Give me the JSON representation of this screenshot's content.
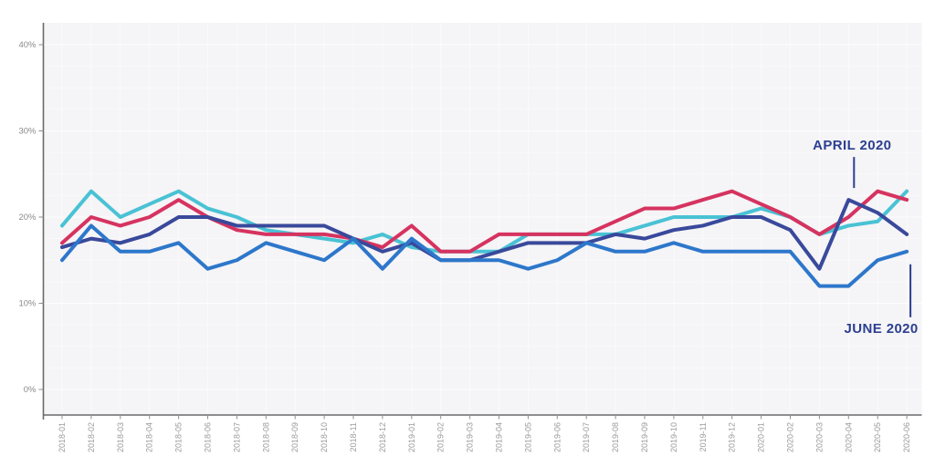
{
  "colors": {
    "page_background": "#ffffff",
    "plot_background": "#f5f4f6",
    "axis_line": "#6a6a6a",
    "tick_mark": "#8f8f8f",
    "x_label": "#9a9a9a",
    "y_label": "#8a8a8a",
    "gridline": "#ffffff",
    "annotation_text": "#2c3f90"
  },
  "chart_data": {
    "type": "line",
    "title": "",
    "xlabel": "",
    "ylabel": "",
    "legend": "none",
    "grid": "subtle",
    "x": [
      "2018-01",
      "2018-02",
      "2018-03",
      "2018-04",
      "2018-05",
      "2018-06",
      "2018-07",
      "2018-08",
      "2018-09",
      "2018-10",
      "2018-11",
      "2018-12",
      "2019-01",
      "2019-02",
      "2019-03",
      "2019-04",
      "2019-05",
      "2019-06",
      "2019-07",
      "2019-08",
      "2019-09",
      "2019-10",
      "2019-11",
      "2019-12",
      "2020-01",
      "2020-02",
      "2020-03",
      "2020-04",
      "2020-05",
      "2020-06"
    ],
    "y_axis": {
      "tick_labels": [
        "0%",
        "10%",
        "20%",
        "30%",
        "40%"
      ],
      "tick_values": [
        0,
        10,
        20,
        30,
        40
      ],
      "unit": "%"
    },
    "series": [
      {
        "id": "teal",
        "color": "#49c2d4",
        "values": [
          19,
          23,
          20,
          21.5,
          23,
          21,
          20,
          18.5,
          18,
          17.5,
          17,
          18,
          16.5,
          16,
          16,
          16,
          18,
          18,
          18,
          18,
          19,
          20,
          20,
          20,
          21,
          20,
          18,
          19,
          19.5,
          23
        ]
      },
      {
        "id": "crimson",
        "color": "#d63360",
        "values": [
          17,
          20,
          19,
          20,
          22,
          20,
          18.5,
          18,
          18,
          18,
          17.5,
          16.5,
          19,
          16,
          16,
          18,
          18,
          18,
          18,
          19.5,
          21,
          21,
          22,
          23,
          21.5,
          20,
          18,
          20,
          23,
          22
        ]
      },
      {
        "id": "navy",
        "color": "#39499b",
        "values": [
          16.5,
          17.5,
          17,
          18,
          20,
          20,
          19,
          19,
          19,
          19,
          17.5,
          16,
          17,
          15,
          15,
          16,
          17,
          17,
          17,
          18,
          17.5,
          18.5,
          19,
          20,
          20,
          18.5,
          14,
          22,
          20.5,
          18
        ]
      },
      {
        "id": "royal-blue",
        "color": "#2d77cb",
        "values": [
          15,
          19,
          16,
          16,
          17,
          14,
          15,
          17,
          16,
          15,
          17.5,
          14,
          17.5,
          15,
          15,
          15,
          14,
          15,
          17,
          16,
          16,
          17,
          16,
          16,
          16,
          16,
          12,
          12,
          15,
          16
        ]
      }
    ],
    "annotations": [
      {
        "label": "APRIL 2020",
        "series_id": "navy",
        "month": "2020-04",
        "value": 22,
        "position": "above"
      },
      {
        "label": "JUNE 2020",
        "series_id": "royal-blue",
        "month": "2020-06",
        "value": 16,
        "position": "below"
      }
    ]
  }
}
